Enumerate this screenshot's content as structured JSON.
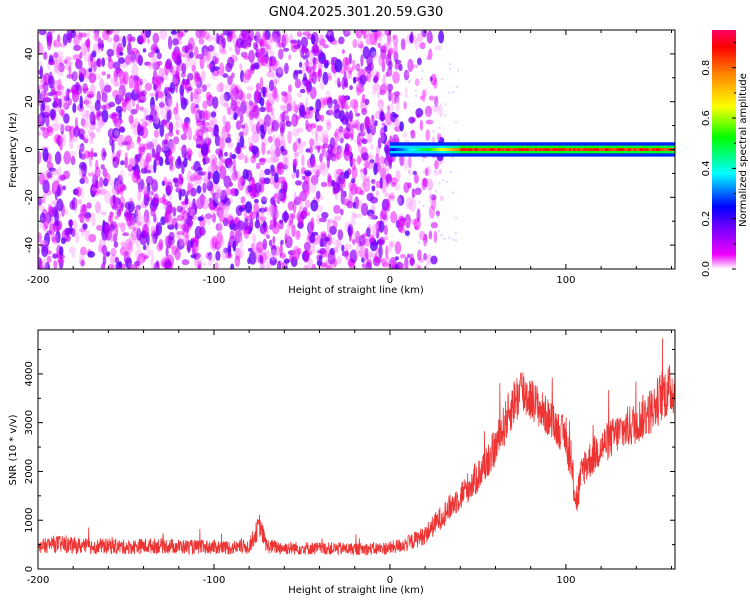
{
  "title": "GN04.2025.301.20.59.G30",
  "colors": {
    "snr_line": "#ee3333",
    "spectrum_base": "#7a1fe6",
    "axis": "#000000",
    "colorbar": [
      "#ff00ff",
      "#0000ff",
      "#00ffff",
      "#00ff00",
      "#ffff00",
      "#ff8000",
      "#ff0000"
    ]
  },
  "chart_data": [
    {
      "type": "heatmap",
      "id": "spectrogram",
      "xlabel": "Height of straight line (km)",
      "ylabel": "Frequency (Hz)",
      "xlim": [
        -200,
        162
      ],
      "ylim": [
        -50,
        50
      ],
      "x_ticks": [
        -200,
        -100,
        0,
        100
      ],
      "x_tick_labels": [
        "-200",
        "-100",
        "0",
        "100"
      ],
      "y_ticks": [
        -40,
        -20,
        0,
        20,
        40
      ],
      "y_tick_labels": [
        "-40",
        "-20",
        "0",
        "20",
        "40"
      ],
      "description_regions": [
        {
          "x_range": [
            -200,
            15
          ],
          "freq_range": [
            -50,
            50
          ],
          "amplitude_range": [
            0.02,
            0.2
          ],
          "note": "broadband noise"
        },
        {
          "x_range": [
            0,
            162
          ],
          "freq_range": [
            -2,
            2
          ],
          "amplitude_range": [
            0.3,
            1.0
          ],
          "note": "narrow signal band near 0 Hz"
        }
      ],
      "colorbar": {
        "label": "Normalized spectral amplitude",
        "range": [
          0.0,
          0.95
        ],
        "ticks": [
          0.0,
          0.2,
          0.4,
          0.6,
          0.8
        ],
        "tick_labels": [
          "0.0",
          "0.2",
          "0.4",
          "0.6",
          "0.8"
        ]
      }
    },
    {
      "type": "line",
      "id": "snr",
      "xlabel": "Height of straight line (km)",
      "ylabel": "SNR (10 * v/v)",
      "xlim": [
        -200,
        162
      ],
      "ylim": [
        0,
        4900
      ],
      "x_ticks": [
        -200,
        -100,
        0,
        100
      ],
      "x_tick_labels": [
        "-200",
        "-100",
        "0",
        "100"
      ],
      "y_ticks": [
        0,
        1000,
        2000,
        3000,
        4000
      ],
      "y_tick_labels": [
        "0",
        "1000",
        "2000",
        "3000",
        "4000"
      ],
      "series": [
        {
          "name": "SNR",
          "x": [
            -200,
            -190,
            -180,
            -170,
            -160,
            -150,
            -140,
            -130,
            -120,
            -110,
            -100,
            -90,
            -80,
            -74,
            -70,
            -60,
            -50,
            -40,
            -30,
            -20,
            -10,
            0,
            10,
            20,
            30,
            40,
            50,
            60,
            70,
            75,
            80,
            90,
            100,
            106,
            110,
            120,
            130,
            140,
            150,
            155,
            162
          ],
          "values": [
            450,
            520,
            480,
            460,
            470,
            450,
            470,
            480,
            460,
            450,
            450,
            440,
            460,
            900,
            470,
            430,
            430,
            420,
            420,
            410,
            410,
            430,
            520,
            700,
            1100,
            1500,
            1900,
            2500,
            3400,
            3650,
            3500,
            3100,
            2700,
            1400,
            2100,
            2500,
            2800,
            3000,
            3300,
            3600,
            3700
          ],
          "noise": [
            140,
            180,
            170,
            160,
            160,
            150,
            160,
            160,
            150,
            150,
            150,
            150,
            150,
            250,
            150,
            140,
            140,
            130,
            130,
            130,
            130,
            140,
            160,
            200,
            250,
            300,
            350,
            400,
            500,
            550,
            450,
            400,
            380,
            400,
            400,
            400,
            420,
            450,
            500,
            550,
            550
          ]
        }
      ]
    }
  ]
}
